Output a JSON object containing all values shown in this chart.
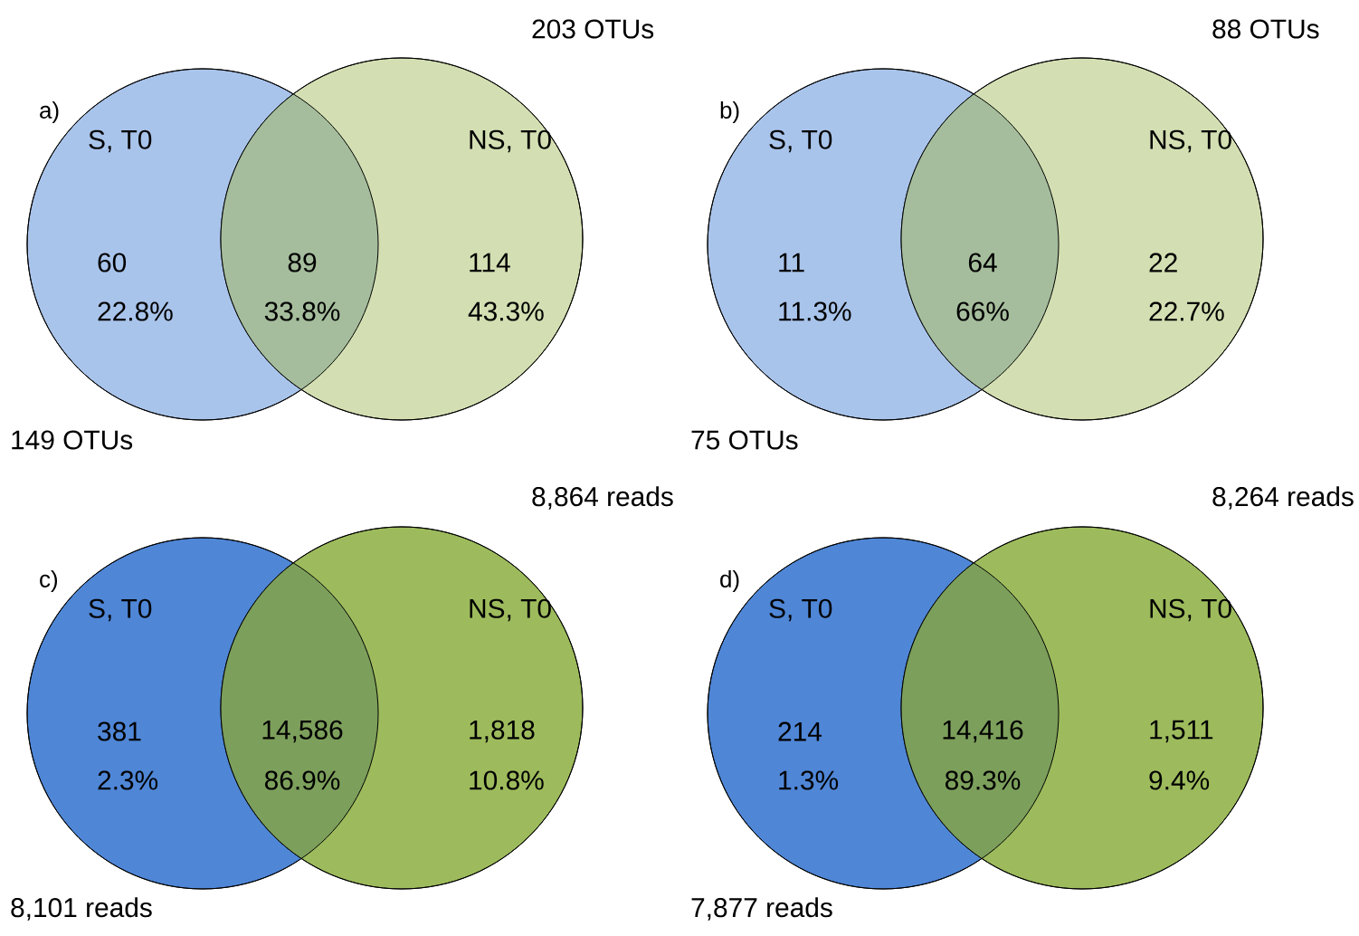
{
  "chart_data": [
    {
      "type": "other",
      "title": "a)",
      "categories": [
        "S, T0",
        null,
        "NS, T0"
      ],
      "colors": [
        "#a9c4eb",
        "#a5bd9c",
        "#d3dfb2"
      ],
      "values": [
        60,
        89,
        114
      ],
      "data_labels": true,
      "annotations": [
        "22.8%",
        "33.8%",
        "43.3%",
        "149 OTUs",
        "203 OTUs"
      ]
    },
    {
      "type": "other",
      "title": "b)",
      "categories": [
        "S, T0",
        null,
        "NS, T0"
      ],
      "colors": [
        "#a9c4eb",
        "#a5bd9c",
        "#d3dfb2"
      ],
      "values": [
        11,
        64,
        22
      ],
      "data_labels": true,
      "annotations": [
        "11.3%",
        "66%",
        "22.7%",
        "75 OTUs",
        "88 OTUs"
      ]
    },
    {
      "type": "other",
      "title": "c)",
      "categories": [
        "S, T0",
        null,
        "NS, T0"
      ],
      "colors": [
        "#4f86d6",
        "#7c9f5b",
        "#9dbb5c"
      ],
      "values": [
        381,
        14586,
        1818
      ],
      "data_labels": true,
      "value_labels": [
        "381",
        "14,586",
        "1,818"
      ],
      "annotations": [
        "2.3%",
        "86.9%",
        "10.8%",
        "8,101 reads",
        "8,864 reads"
      ]
    },
    {
      "type": "other",
      "title": "d)",
      "categories": [
        "S, T0",
        null,
        "NS, T0"
      ],
      "colors": [
        "#4f86d6",
        "#7c9f5b",
        "#9dbb5c"
      ],
      "values": [
        214,
        14416,
        1511
      ],
      "data_labels": true,
      "value_labels": [
        "214",
        "14,416",
        "1,511"
      ],
      "annotations": [
        "1.3%",
        "89.3%",
        "9.4%",
        "7,877 reads",
        "8,264 reads"
      ]
    }
  ]
}
